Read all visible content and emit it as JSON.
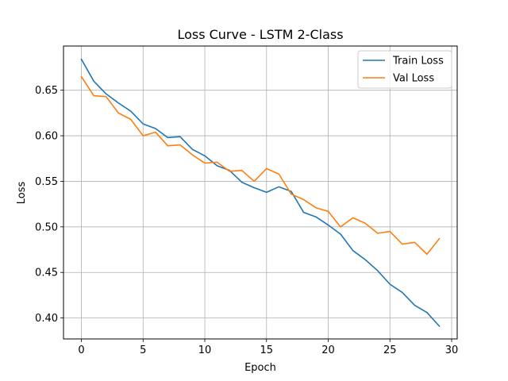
{
  "chart_data": {
    "type": "line",
    "title": "Loss Curve - LSTM 2-Class",
    "xlabel": "Epoch",
    "ylabel": "Loss",
    "xlim": [
      -1.45,
      30.45
    ],
    "ylim": [
      0.377,
      0.6985
    ],
    "xticks": [
      0,
      5,
      10,
      15,
      20,
      25,
      30
    ],
    "yticks": [
      0.4,
      0.45,
      0.5,
      0.55,
      0.6,
      0.65
    ],
    "grid": true,
    "legend": "top-right",
    "x": [
      0,
      1,
      2,
      3,
      4,
      5,
      6,
      7,
      8,
      9,
      10,
      11,
      12,
      13,
      14,
      15,
      16,
      17,
      18,
      19,
      20,
      21,
      22,
      23,
      24,
      25,
      26,
      27,
      28,
      29
    ],
    "series": [
      {
        "name": "Train Loss",
        "color": "#1f77b4",
        "values": [
          0.684,
          0.66,
          0.646,
          0.636,
          0.627,
          0.613,
          0.608,
          0.598,
          0.599,
          0.585,
          0.578,
          0.567,
          0.562,
          0.549,
          0.543,
          0.538,
          0.544,
          0.539,
          0.516,
          0.511,
          0.502,
          0.492,
          0.474,
          0.464,
          0.452,
          0.437,
          0.428,
          0.414,
          0.406,
          0.391
        ]
      },
      {
        "name": "Val Loss",
        "color": "#ff7f0e",
        "values": [
          0.665,
          0.644,
          0.643,
          0.625,
          0.618,
          0.6,
          0.604,
          0.589,
          0.59,
          0.579,
          0.57,
          0.571,
          0.561,
          0.562,
          0.55,
          0.564,
          0.558,
          0.536,
          0.53,
          0.521,
          0.517,
          0.5,
          0.51,
          0.504,
          0.493,
          0.495,
          0.481,
          0.483,
          0.47,
          0.487
        ]
      }
    ]
  }
}
